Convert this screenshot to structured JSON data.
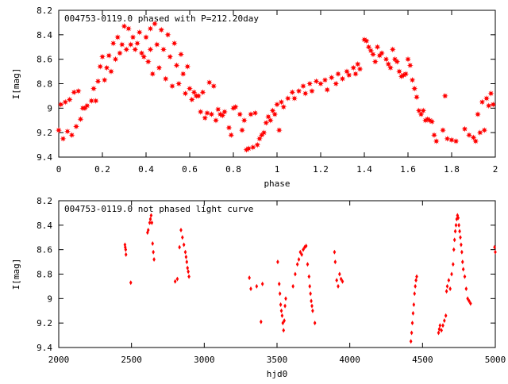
{
  "chart_data": [
    {
      "type": "scatter",
      "title": "004753-0119.0 phased with P=212.20day",
      "xlabel": "phase",
      "ylabel": "I[mag]",
      "xlim": [
        0,
        2
      ],
      "ylim": [
        8.2,
        9.4
      ],
      "y_inverted": true,
      "grid": false,
      "marker_color": "#ff0000",
      "marker": "star",
      "x_ticks": [
        {
          "value": 0,
          "label": "0"
        },
        {
          "value": 0.2,
          "label": "0.2"
        },
        {
          "value": 0.4,
          "label": "0.4"
        },
        {
          "value": 0.6,
          "label": "0.6"
        },
        {
          "value": 0.8,
          "label": "0.8"
        },
        {
          "value": 1,
          "label": "1"
        },
        {
          "value": 1.2,
          "label": "1.2"
        },
        {
          "value": 1.4,
          "label": "1.4"
        },
        {
          "value": 1.6,
          "label": "1.6"
        },
        {
          "value": 1.8,
          "label": "1.8"
        },
        {
          "value": 2,
          "label": "2"
        }
      ],
      "y_ticks": [
        {
          "value": 8.2,
          "label": "8.2"
        },
        {
          "value": 8.4,
          "label": "8.4"
        },
        {
          "value": 8.6,
          "label": "8.6"
        },
        {
          "value": 8.8,
          "label": "8.8"
        },
        {
          "value": 9,
          "label": "9"
        },
        {
          "value": 9.2,
          "label": "9.2"
        },
        {
          "value": 9.4,
          "label": "9.4"
        }
      ],
      "points": [
        [
          0.0,
          9.18
        ],
        [
          0.01,
          8.97
        ],
        [
          0.02,
          9.25
        ],
        [
          0.03,
          8.95
        ],
        [
          0.04,
          9.19
        ],
        [
          0.05,
          8.93
        ],
        [
          0.06,
          9.22
        ],
        [
          0.07,
          8.87
        ],
        [
          0.08,
          9.15
        ],
        [
          0.09,
          8.86
        ],
        [
          0.1,
          9.09
        ],
        [
          0.11,
          9.0
        ],
        [
          0.12,
          9.0
        ],
        [
          0.13,
          8.98
        ],
        [
          0.15,
          8.94
        ],
        [
          0.16,
          8.84
        ],
        [
          0.17,
          8.94
        ],
        [
          0.18,
          8.78
        ],
        [
          0.19,
          8.66
        ],
        [
          0.2,
          8.58
        ],
        [
          0.21,
          8.77
        ],
        [
          0.22,
          8.67
        ],
        [
          0.23,
          8.57
        ],
        [
          0.24,
          8.7
        ],
        [
          0.25,
          8.47
        ],
        [
          0.26,
          8.6
        ],
        [
          0.27,
          8.42
        ],
        [
          0.28,
          8.55
        ],
        [
          0.29,
          8.48
        ],
        [
          0.3,
          8.33
        ],
        [
          0.31,
          8.52
        ],
        [
          0.32,
          8.35
        ],
        [
          0.33,
          8.48
        ],
        [
          0.34,
          8.42
        ],
        [
          0.35,
          8.52
        ],
        [
          0.36,
          8.47
        ],
        [
          0.37,
          8.38
        ],
        [
          0.38,
          8.55
        ],
        [
          0.39,
          8.58
        ],
        [
          0.4,
          8.42
        ],
        [
          0.41,
          8.62
        ],
        [
          0.42,
          8.35
        ],
        [
          0.42,
          8.52
        ],
        [
          0.43,
          8.72
        ],
        [
          0.44,
          8.31
        ],
        [
          0.45,
          8.48
        ],
        [
          0.46,
          8.67
        ],
        [
          0.47,
          8.36
        ],
        [
          0.48,
          8.52
        ],
        [
          0.49,
          8.76
        ],
        [
          0.5,
          8.4
        ],
        [
          0.51,
          8.58
        ],
        [
          0.52,
          8.82
        ],
        [
          0.53,
          8.47
        ],
        [
          0.54,
          8.65
        ],
        [
          0.55,
          8.8
        ],
        [
          0.56,
          8.56
        ],
        [
          0.57,
          8.72
        ],
        [
          0.58,
          8.88
        ],
        [
          0.59,
          8.66
        ],
        [
          0.6,
          8.84
        ],
        [
          0.61,
          8.93
        ],
        [
          0.62,
          8.87
        ],
        [
          0.63,
          8.9
        ],
        [
          0.64,
          8.9
        ],
        [
          0.65,
          9.03
        ],
        [
          0.66,
          8.87
        ],
        [
          0.67,
          9.08
        ],
        [
          0.68,
          9.04
        ],
        [
          0.69,
          8.79
        ],
        [
          0.7,
          9.05
        ],
        [
          0.71,
          8.82
        ],
        [
          0.72,
          9.1
        ],
        [
          0.73,
          9.01
        ],
        [
          0.74,
          9.05
        ],
        [
          0.75,
          9.06
        ],
        [
          0.76,
          9.03
        ],
        [
          0.78,
          9.16
        ],
        [
          0.79,
          9.22
        ],
        [
          0.8,
          9.0
        ],
        [
          0.81,
          8.99
        ],
        [
          0.83,
          9.05
        ],
        [
          0.84,
          9.18
        ],
        [
          0.85,
          9.1
        ],
        [
          0.86,
          9.34
        ],
        [
          0.87,
          9.33
        ],
        [
          0.88,
          9.05
        ],
        [
          0.89,
          9.32
        ],
        [
          0.9,
          9.04
        ],
        [
          0.91,
          9.3
        ],
        [
          0.92,
          9.25
        ],
        [
          0.93,
          9.22
        ],
        [
          0.94,
          9.2
        ],
        [
          0.95,
          9.12
        ],
        [
          0.96,
          9.07
        ],
        [
          0.97,
          9.1
        ],
        [
          0.98,
          9.02
        ],
        [
          0.99,
          9.05
        ],
        [
          1.0,
          8.97
        ],
        [
          1.01,
          9.18
        ],
        [
          1.02,
          8.95
        ],
        [
          1.03,
          8.99
        ],
        [
          1.05,
          8.92
        ],
        [
          1.07,
          8.87
        ],
        [
          1.08,
          8.92
        ],
        [
          1.1,
          8.86
        ],
        [
          1.12,
          8.82
        ],
        [
          1.13,
          8.88
        ],
        [
          1.15,
          8.8
        ],
        [
          1.16,
          8.86
        ],
        [
          1.18,
          8.78
        ],
        [
          1.2,
          8.8
        ],
        [
          1.22,
          8.77
        ],
        [
          1.23,
          8.85
        ],
        [
          1.25,
          8.75
        ],
        [
          1.27,
          8.8
        ],
        [
          1.28,
          8.72
        ],
        [
          1.3,
          8.76
        ],
        [
          1.32,
          8.7
        ],
        [
          1.33,
          8.73
        ],
        [
          1.35,
          8.67
        ],
        [
          1.36,
          8.72
        ],
        [
          1.37,
          8.64
        ],
        [
          1.38,
          8.68
        ],
        [
          1.4,
          8.44
        ],
        [
          1.41,
          8.45
        ],
        [
          1.42,
          8.5
        ],
        [
          1.43,
          8.53
        ],
        [
          1.44,
          8.56
        ],
        [
          1.45,
          8.62
        ],
        [
          1.46,
          8.5
        ],
        [
          1.47,
          8.57
        ],
        [
          1.48,
          8.55
        ],
        [
          1.5,
          8.6
        ],
        [
          1.51,
          8.64
        ],
        [
          1.52,
          8.67
        ],
        [
          1.53,
          8.52
        ],
        [
          1.54,
          8.6
        ],
        [
          1.55,
          8.62
        ],
        [
          1.56,
          8.7
        ],
        [
          1.57,
          8.74
        ],
        [
          1.58,
          8.73
        ],
        [
          1.59,
          8.72
        ],
        [
          1.6,
          8.6
        ],
        [
          1.61,
          8.65
        ],
        [
          1.62,
          8.77
        ],
        [
          1.63,
          8.84
        ],
        [
          1.64,
          8.91
        ],
        [
          1.65,
          9.02
        ],
        [
          1.66,
          9.05
        ],
        [
          1.67,
          9.02
        ],
        [
          1.68,
          9.1
        ],
        [
          1.69,
          9.09
        ],
        [
          1.7,
          9.1
        ],
        [
          1.71,
          9.11
        ],
        [
          1.72,
          9.22
        ],
        [
          1.73,
          9.27
        ],
        [
          1.76,
          9.18
        ],
        [
          1.77,
          8.9
        ],
        [
          1.78,
          9.25
        ],
        [
          1.8,
          9.26
        ],
        [
          1.82,
          9.27
        ],
        [
          1.86,
          9.17
        ],
        [
          1.88,
          9.22
        ],
        [
          1.9,
          9.24
        ],
        [
          1.91,
          9.27
        ],
        [
          1.92,
          9.05
        ],
        [
          1.93,
          9.2
        ],
        [
          1.94,
          8.95
        ],
        [
          1.95,
          9.18
        ],
        [
          1.96,
          8.92
        ],
        [
          1.97,
          8.98
        ],
        [
          1.98,
          8.88
        ],
        [
          1.99,
          8.97
        ]
      ]
    },
    {
      "type": "scatter",
      "title": "004753-0119.0 not phased light curve",
      "xlabel": "hjd0",
      "ylabel": "I[mag]",
      "xlim": [
        2000,
        5000
      ],
      "ylim": [
        8.2,
        9.4
      ],
      "y_inverted": true,
      "grid": false,
      "marker_color": "#ff0000",
      "marker": "diamond",
      "x_ticks": [
        {
          "value": 2000,
          "label": "2000"
        },
        {
          "value": 2500,
          "label": "2500"
        },
        {
          "value": 3000,
          "label": "3000"
        },
        {
          "value": 3500,
          "label": "3500"
        },
        {
          "value": 4000,
          "label": "4000"
        },
        {
          "value": 4500,
          "label": "4500"
        },
        {
          "value": 5000,
          "label": "5000"
        }
      ],
      "y_ticks": [
        {
          "value": 8.2,
          "label": "8.2"
        },
        {
          "value": 8.4,
          "label": "8.4"
        },
        {
          "value": 8.6,
          "label": "8.6"
        },
        {
          "value": 8.8,
          "label": "8.8"
        },
        {
          "value": 9,
          "label": "9"
        },
        {
          "value": 9.2,
          "label": "9.2"
        },
        {
          "value": 9.4,
          "label": "9.4"
        }
      ],
      "points": [
        [
          2455,
          8.56
        ],
        [
          2457,
          8.58
        ],
        [
          2460,
          8.6
        ],
        [
          2462,
          8.64
        ],
        [
          2495,
          8.87
        ],
        [
          2610,
          8.46
        ],
        [
          2615,
          8.44
        ],
        [
          2625,
          8.38
        ],
        [
          2630,
          8.35
        ],
        [
          2635,
          8.32
        ],
        [
          2640,
          8.38
        ],
        [
          2645,
          8.55
        ],
        [
          2650,
          8.62
        ],
        [
          2655,
          8.68
        ],
        [
          2800,
          8.86
        ],
        [
          2815,
          8.84
        ],
        [
          2830,
          8.58
        ],
        [
          2840,
          8.44
        ],
        [
          2850,
          8.5
        ],
        [
          2860,
          8.56
        ],
        [
          2870,
          8.62
        ],
        [
          2875,
          8.66
        ],
        [
          2880,
          8.7
        ],
        [
          2885,
          8.75
        ],
        [
          2890,
          8.78
        ],
        [
          2895,
          8.82
        ],
        [
          3310,
          8.83
        ],
        [
          3320,
          8.92
        ],
        [
          3360,
          8.9
        ],
        [
          3390,
          9.19
        ],
        [
          3400,
          8.88
        ],
        [
          3505,
          8.7
        ],
        [
          3515,
          8.88
        ],
        [
          3520,
          8.96
        ],
        [
          3525,
          9.05
        ],
        [
          3530,
          9.1
        ],
        [
          3535,
          9.14
        ],
        [
          3540,
          9.2
        ],
        [
          3545,
          9.26
        ],
        [
          3550,
          9.18
        ],
        [
          3555,
          9.06
        ],
        [
          3560,
          9.0
        ],
        [
          3610,
          8.9
        ],
        [
          3625,
          8.8
        ],
        [
          3640,
          8.72
        ],
        [
          3650,
          8.68
        ],
        [
          3660,
          8.62
        ],
        [
          3670,
          8.64
        ],
        [
          3680,
          8.6
        ],
        [
          3690,
          8.58
        ],
        [
          3700,
          8.57
        ],
        [
          3710,
          8.72
        ],
        [
          3720,
          8.82
        ],
        [
          3725,
          8.9
        ],
        [
          3730,
          8.96
        ],
        [
          3735,
          9.02
        ],
        [
          3740,
          9.06
        ],
        [
          3745,
          9.1
        ],
        [
          3760,
          9.2
        ],
        [
          3895,
          8.62
        ],
        [
          3900,
          8.7
        ],
        [
          3910,
          8.85
        ],
        [
          3920,
          8.9
        ],
        [
          3930,
          8.8
        ],
        [
          3940,
          8.84
        ],
        [
          3950,
          8.86
        ],
        [
          4420,
          9.35
        ],
        [
          4425,
          9.28
        ],
        [
          4430,
          9.2
        ],
        [
          4435,
          9.12
        ],
        [
          4440,
          9.05
        ],
        [
          4445,
          8.96
        ],
        [
          4450,
          8.9
        ],
        [
          4455,
          8.85
        ],
        [
          4460,
          8.82
        ],
        [
          4610,
          9.28
        ],
        [
          4615,
          9.25
        ],
        [
          4620,
          9.22
        ],
        [
          4630,
          9.26
        ],
        [
          4640,
          9.22
        ],
        [
          4650,
          9.18
        ],
        [
          4660,
          9.14
        ],
        [
          4665,
          8.94
        ],
        [
          4670,
          8.9
        ],
        [
          4680,
          8.85
        ],
        [
          4690,
          8.92
        ],
        [
          4700,
          8.8
        ],
        [
          4710,
          8.72
        ],
        [
          4715,
          8.6
        ],
        [
          4720,
          8.52
        ],
        [
          4725,
          8.45
        ],
        [
          4730,
          8.4
        ],
        [
          4735,
          8.35
        ],
        [
          4740,
          8.32
        ],
        [
          4745,
          8.34
        ],
        [
          4750,
          8.4
        ],
        [
          4755,
          8.45
        ],
        [
          4760,
          8.5
        ],
        [
          4765,
          8.56
        ],
        [
          4770,
          8.62
        ],
        [
          4775,
          8.7
        ],
        [
          4780,
          8.76
        ],
        [
          4790,
          8.82
        ],
        [
          4800,
          8.92
        ],
        [
          4810,
          9.0
        ],
        [
          4820,
          9.02
        ],
        [
          4830,
          9.04
        ],
        [
          4995,
          8.58
        ],
        [
          5000,
          8.62
        ]
      ]
    }
  ]
}
